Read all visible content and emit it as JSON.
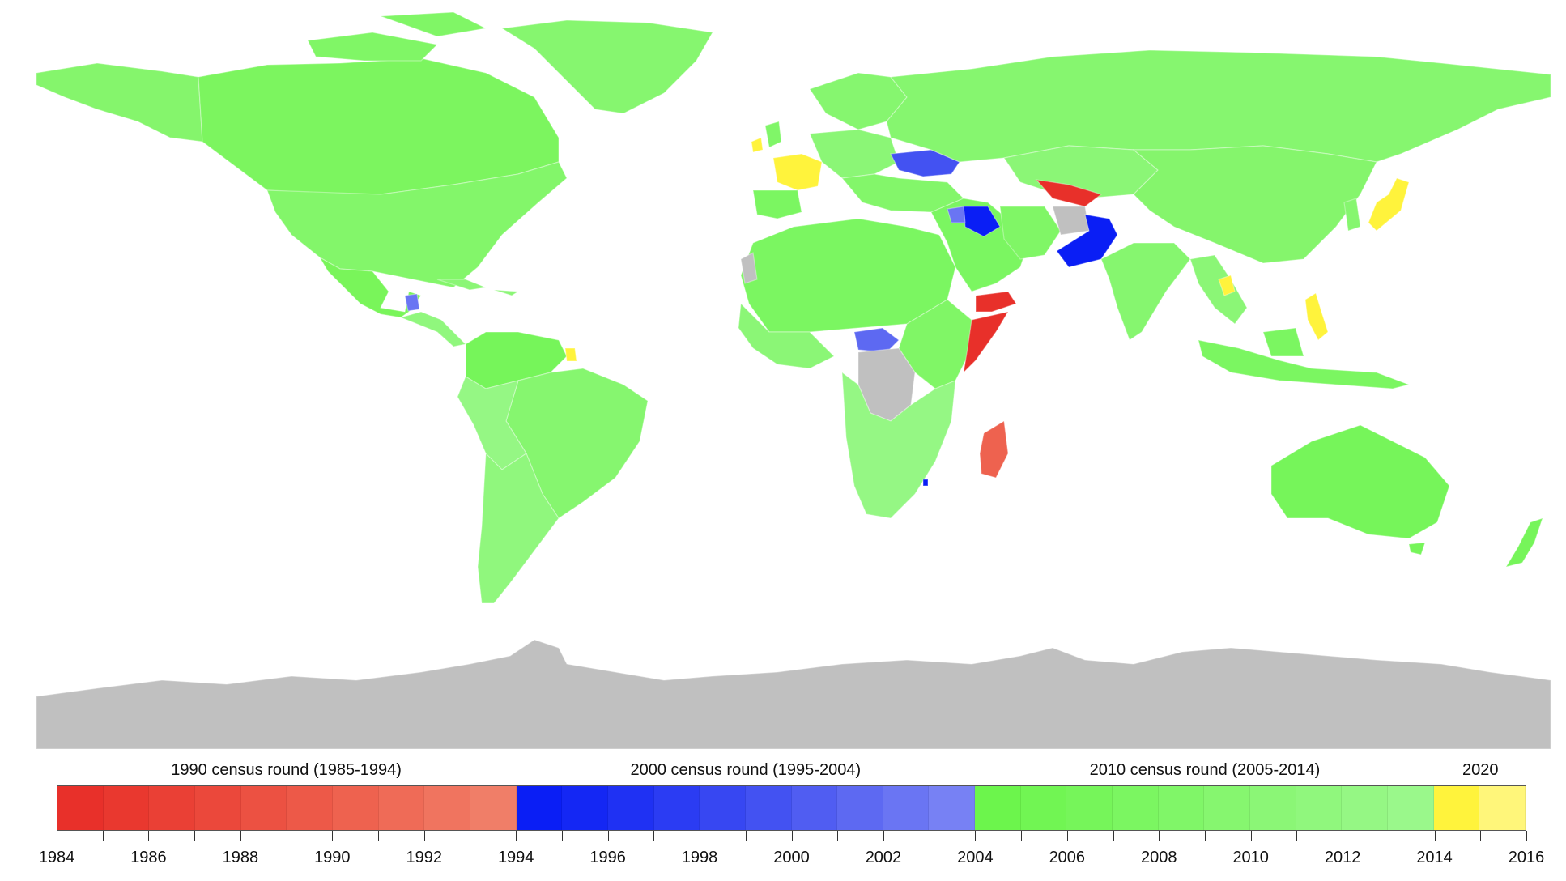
{
  "legend": {
    "rounds": [
      {
        "label": "1990 census round (1985-1994)",
        "color": "#e8302a"
      },
      {
        "label": "2000 census round (1995-2004)",
        "color": "#0a1ef5"
      },
      {
        "label": "2010 census round (2005-2014)",
        "color": "#6cf54c"
      },
      {
        "label": "2020",
        "color": "#fff33c"
      }
    ],
    "tick_labels": [
      "1984",
      "1986",
      "1988",
      "1990",
      "1992",
      "1994",
      "1996",
      "1998",
      "2000",
      "2002",
      "2004",
      "2006",
      "2008",
      "2010",
      "2012",
      "2014",
      "2016"
    ],
    "colors": [
      "#e8302a",
      "#e9382f",
      "#ea4035",
      "#eb483b",
      "#ec5142",
      "#ed5948",
      "#ee624f",
      "#ef6b57",
      "#f0745f",
      "#f07e68",
      "#0a1ef5",
      "#1427f4",
      "#1f31f3",
      "#2b3cf3",
      "#3747f2",
      "#4352f2",
      "#505df2",
      "#5d69f2",
      "#6a75f3",
      "#7781f4",
      "#6cf54c",
      "#71f553",
      "#76f55a",
      "#7bf661",
      "#80f668",
      "#86f66f",
      "#8bf676",
      "#90f77d",
      "#95f784",
      "#9af88b",
      "#fff33c",
      "#fff67a"
    ],
    "no_data_color": "#c0c0c0"
  }
}
